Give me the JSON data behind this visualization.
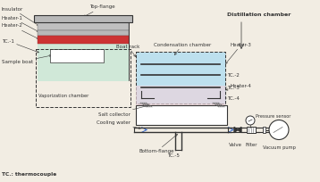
{
  "bg_color": "#f2ede3",
  "labels": {
    "insulator": "Insulator",
    "heater1": "Heater-1",
    "heater2": "Heater-2",
    "tc1": "TC.-1",
    "sample_boat": "Sample boat",
    "vaporization": "Vaporization chamber",
    "top_flange": "Top-flange",
    "boat_rack": "Boat rack",
    "condensation": "Condensation chamber",
    "distillation": "Distillation chamber",
    "heater3": "Heater-3",
    "tc2": "TC.-2",
    "tc3": "TC.-3",
    "heater4": "Heater-4",
    "tc4": "TC.-4",
    "pressure_sensor": "Pressure sensor",
    "salt_collector": "Salt collector",
    "cooling_water": "Cooling water",
    "bottom_flange": "Bottom-flange",
    "tc5": "TC.-5",
    "valve": "Valve",
    "filter": "Filter",
    "vacuum_pump": "Vacuum pump",
    "tc_note": "TC.: thermocouple"
  },
  "colors": {
    "dark": "#333333",
    "med": "#666666",
    "insulator_fill": "#c0c0c0",
    "heater1_fill": "#b0b0b0",
    "heater2_fill": "#cc3333",
    "inner_fill": "#d8e8d8",
    "vap_fill": "#d0e8d8",
    "cond_fill": "#bde0ee",
    "pink_fill": "#ecd4dc",
    "flange_fill": "#b8b8b8",
    "white": "#ffffff",
    "blue_arrow": "#3366cc"
  },
  "fs": 4.0
}
